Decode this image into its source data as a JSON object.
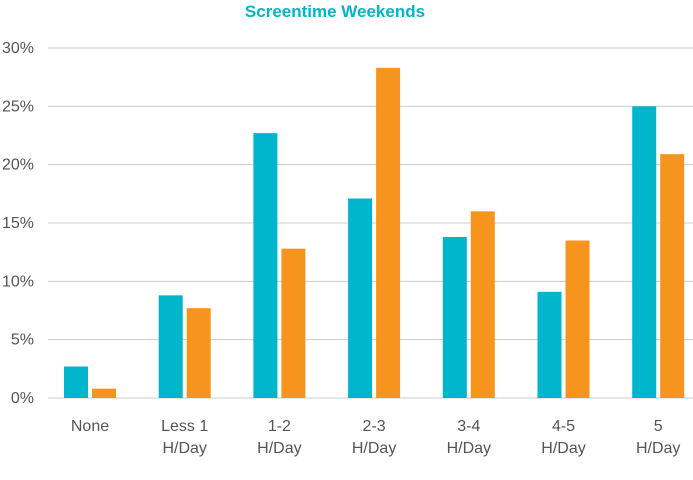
{
  "chart_data": {
    "type": "bar",
    "title": "Screentime Weekends",
    "xlabel": "",
    "ylabel": "",
    "categories": [
      [
        "None"
      ],
      [
        "Less 1",
        "H/Day"
      ],
      [
        "1-2",
        "H/Day"
      ],
      [
        "2-3",
        "H/Day"
      ],
      [
        "3-4",
        "H/Day"
      ],
      [
        "4-5",
        "H/Day"
      ],
      [
        "5",
        "H/Day"
      ]
    ],
    "series": [
      {
        "values": [
          2.7,
          8.8,
          22.7,
          17.1,
          13.8,
          9.1,
          25.0
        ]
      },
      {
        "values": [
          0.8,
          7.7,
          12.8,
          28.3,
          16.0,
          13.5,
          20.9
        ]
      }
    ],
    "ylim": [
      0,
      30
    ],
    "yticks": [
      0,
      5,
      10,
      15,
      20,
      25,
      30
    ],
    "ytick_labels": [
      "0%",
      "5%",
      "10%",
      "15%",
      "20%",
      "25%",
      "30%"
    ],
    "grid": true,
    "legend": "none"
  },
  "colors": {
    "series": [
      "#00b5cc",
      "#f7941d"
    ],
    "title": "#00b5cc",
    "grid": "#cccccc",
    "text": "#555555"
  }
}
